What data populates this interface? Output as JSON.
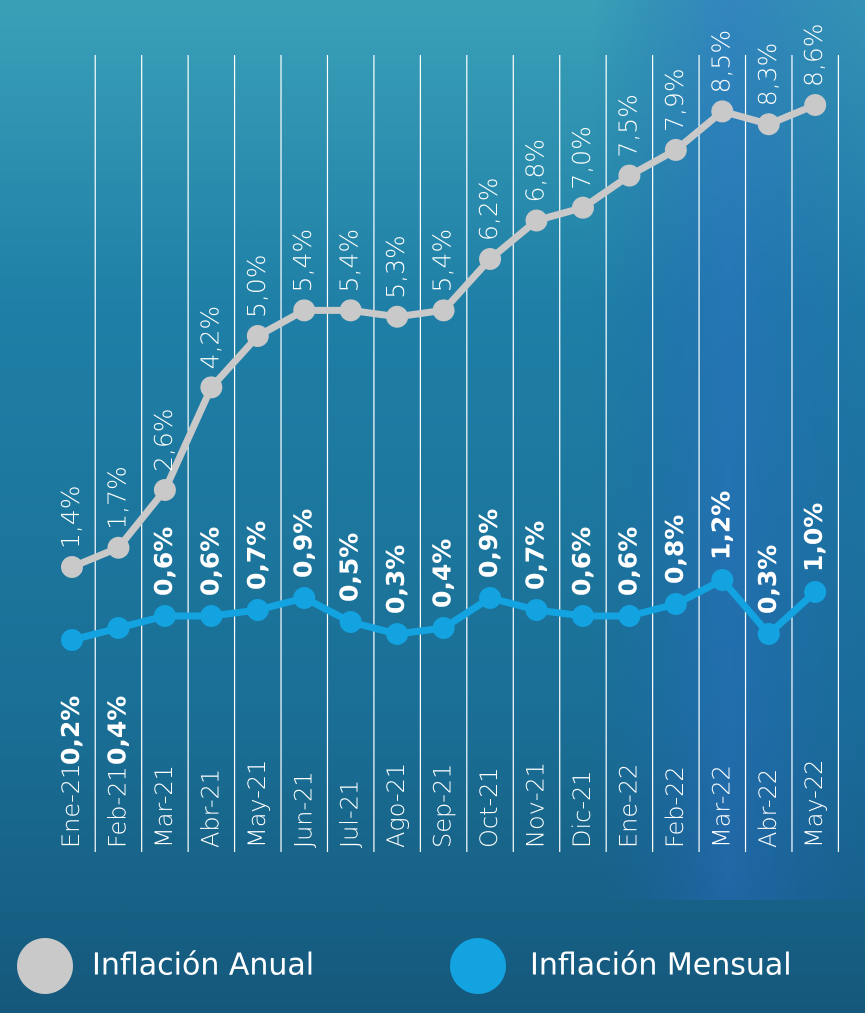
{
  "chart_data": {
    "type": "line",
    "categories": [
      "Ene-21",
      "Feb-21",
      "Mar-21",
      "Abr-21",
      "May-21",
      "Jun-21",
      "Jul-21",
      "Ago-21",
      "Sep-21",
      "Oct-21",
      "Nov-21",
      "Dic-21",
      "Ene-22",
      "Feb-22",
      "Mar-22",
      "Abr-22",
      "May-22"
    ],
    "series": [
      {
        "name": "Inflación Anual",
        "color": "#c9c9c9",
        "values": [
          1.4,
          1.7,
          2.6,
          4.2,
          5.0,
          5.4,
          5.4,
          5.3,
          5.4,
          6.2,
          6.8,
          7.0,
          7.5,
          7.9,
          8.5,
          8.3,
          8.6
        ],
        "value_labels": [
          "1,4%",
          "1,7%",
          "2,6%",
          "4,2%",
          "5,0%",
          "5,4%",
          "5,4%",
          "5,3%",
          "5,4%",
          "6,2%",
          "6,8%",
          "7,0%",
          "7,5%",
          "7,9%",
          "8,5%",
          "8,3%",
          "8,6%"
        ]
      },
      {
        "name": "Inflación Mensual",
        "color": "#12a3e0",
        "values": [
          0.2,
          0.4,
          0.6,
          0.6,
          0.7,
          0.9,
          0.5,
          0.3,
          0.4,
          0.9,
          0.7,
          0.6,
          0.6,
          0.8,
          1.2,
          0.3,
          1.0
        ],
        "value_labels": [
          "0,2%",
          "0,4%",
          "0,6%",
          "0,6%",
          "0,7%",
          "0,9%",
          "0,5%",
          "0,3%",
          "0,4%",
          "0,9%",
          "0,7%",
          "0,6%",
          "0,6%",
          "0,8%",
          "1,2%",
          "0,3%",
          "1,0%"
        ]
      }
    ]
  }
}
